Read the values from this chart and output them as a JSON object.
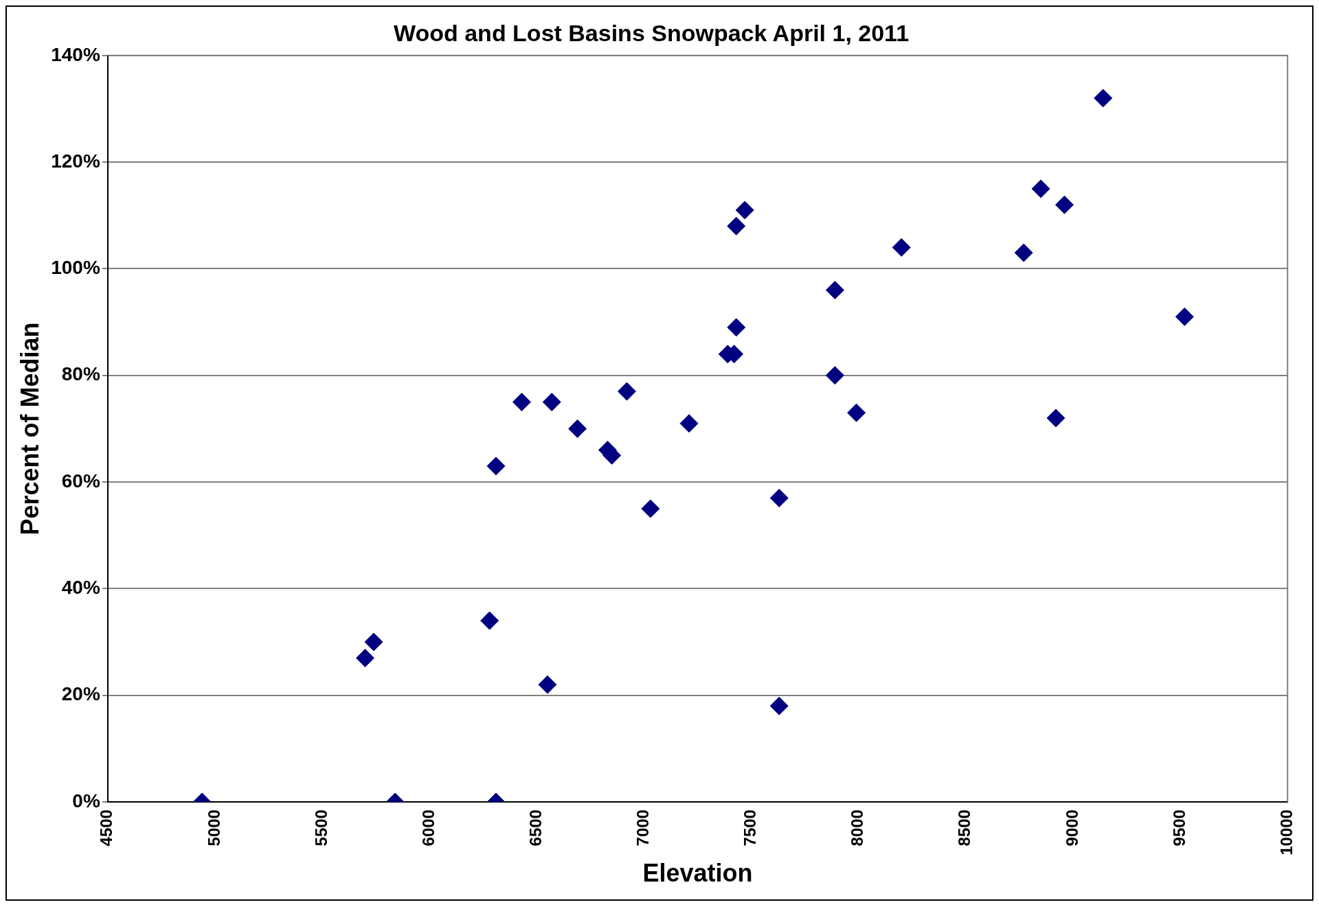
{
  "chart_data": {
    "type": "scatter",
    "title": "Wood and Lost Basins Snowpack April 1, 2011",
    "xlabel": "Elevation",
    "ylabel": "Percent of Median",
    "x": [
      4940,
      5840,
      6310,
      5700,
      5740,
      6280,
      6550,
      6310,
      6430,
      6570,
      6690,
      6830,
      6850,
      6920,
      7030,
      7210,
      7390,
      7420,
      7430,
      7430,
      7470,
      7630,
      7630,
      7890,
      7890,
      7990,
      8200,
      8770,
      8850,
      8920,
      8960,
      9140,
      9520
    ],
    "series": [
      {
        "color": "#000080",
        "values": [
          0,
          0,
          0,
          27,
          30,
          34,
          22,
          63,
          75,
          75,
          70,
          66,
          65,
          77,
          55,
          71,
          84,
          84,
          89,
          108,
          111,
          57,
          18,
          96,
          80,
          73,
          104,
          103,
          115,
          72,
          112,
          132,
          91
        ]
      }
    ],
    "marker": "diamond",
    "grid": "y",
    "legend": false,
    "xlim": [
      4500,
      10000
    ],
    "xticks": [
      4500,
      5000,
      5500,
      6000,
      6500,
      7000,
      7500,
      8000,
      8500,
      9000,
      9500,
      10000
    ],
    "ylim": [
      0,
      140
    ],
    "yticks": [
      {
        "value": 0,
        "label": "0%"
      },
      {
        "value": 20,
        "label": "20%"
      },
      {
        "value": 40,
        "label": "40%"
      },
      {
        "value": 60,
        "label": "60%"
      },
      {
        "value": 80,
        "label": "80%"
      },
      {
        "value": 100,
        "label": "100%"
      },
      {
        "value": 120,
        "label": "120%"
      },
      {
        "value": 140,
        "label": "140%"
      }
    ]
  }
}
